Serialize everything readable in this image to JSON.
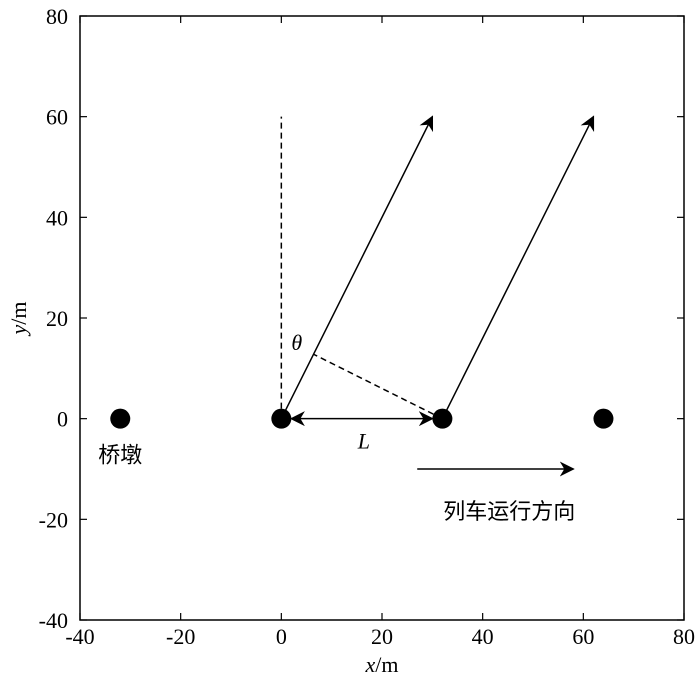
{
  "chart_data": {
    "type": "diagram",
    "xlabel_var": "x",
    "xlabel_unit": "/m",
    "ylabel_var": "y",
    "ylabel_unit": "/m",
    "xlim": [
      -40,
      80
    ],
    "ylim": [
      -40,
      80
    ],
    "x_ticks": [
      -40,
      -20,
      0,
      20,
      40,
      60,
      80
    ],
    "y_ticks": [
      -40,
      -20,
      0,
      20,
      40,
      60,
      80
    ],
    "piers": [
      {
        "x": -32,
        "y": 0
      },
      {
        "x": 0,
        "y": 0
      },
      {
        "x": 32,
        "y": 0
      },
      {
        "x": 64,
        "y": 0
      }
    ],
    "pier_label": "桥墩",
    "dashed_vertical": {
      "x": 0,
      "y0": 0,
      "y1": 60
    },
    "wave_arrows": [
      {
        "x0": 0,
        "y0": 0,
        "x1": 30,
        "y1": 60
      },
      {
        "x0": 32,
        "y0": 0,
        "x1": 62,
        "y1": 60
      }
    ],
    "dashed_perpendicular": {
      "x0": 32,
      "y0": 0,
      "x1": 6.4,
      "y1": 12.8
    },
    "theta_label": "θ",
    "spacing_arrow": {
      "x0": 0,
      "x1": 32,
      "y": 0
    },
    "spacing_label": "L",
    "train_arrow": {
      "x0": 27,
      "x1": 58,
      "y": -10
    },
    "train_label": "列车运行方向"
  }
}
